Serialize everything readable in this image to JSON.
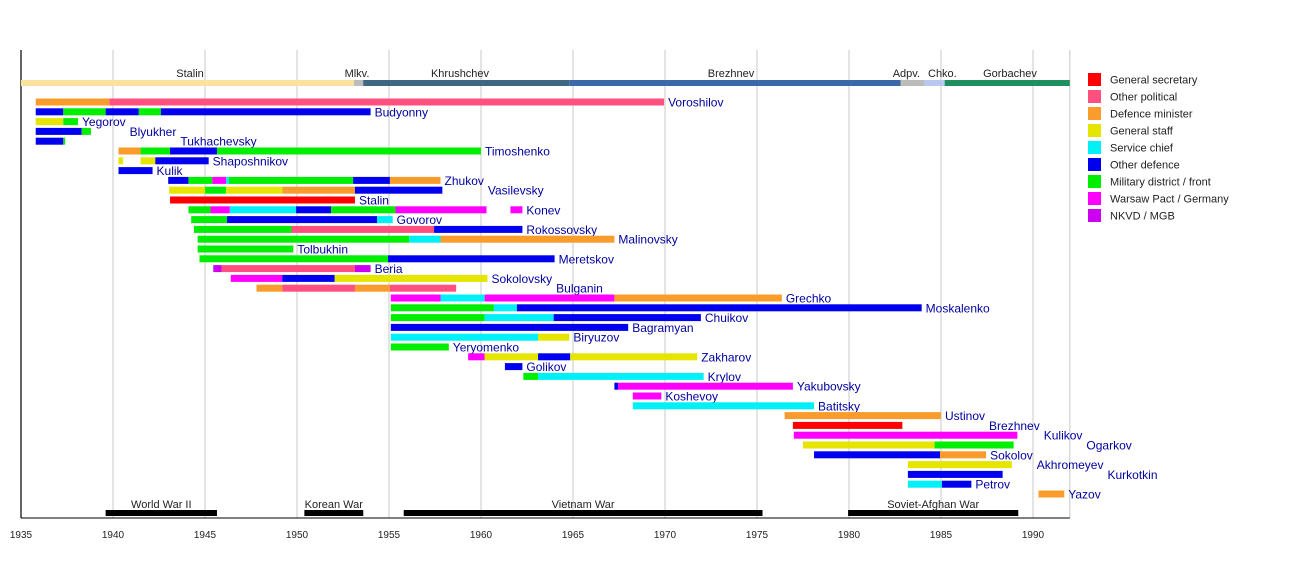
{
  "chart_data": {
    "type": "timeline",
    "xlim": [
      1935,
      1992
    ],
    "x_ticks": [
      "1935",
      "1940",
      "1945",
      "1950",
      "1955",
      "1960",
      "1965",
      "1970",
      "1975",
      "1980",
      "1985",
      "1990"
    ],
    "grid": true,
    "legend_placement": "right",
    "roles": {
      "GS": {
        "label": "General secretary",
        "color": "#ff0000"
      },
      "OP": {
        "label": "Other political",
        "color": "#ff5080"
      },
      "DM": {
        "label": "Defence minister",
        "color": "#f99c2c"
      },
      "ST": {
        "label": "General staff",
        "color": "#e5e500"
      },
      "SC": {
        "label": "Service chief",
        "color": "#00f0f8"
      },
      "OD": {
        "label": "Other defence",
        "color": "#0000ee"
      },
      "MD": {
        "label": "Military district / front",
        "color": "#00ee00"
      },
      "WP": {
        "label": "Warsaw Pact / Germany",
        "color": "#ff00ff"
      },
      "NK": {
        "label": "NKVD / MGB",
        "color": "#cc00f0"
      }
    },
    "legend_order": [
      "GS",
      "OP",
      "DM",
      "ST",
      "SC",
      "OD",
      "MD",
      "WP",
      "NK"
    ],
    "leaders": [
      {
        "label": "Stalin",
        "start": 1935.0,
        "end": 1953.1,
        "color": "#fbe29f"
      },
      {
        "label": "Mlkv.",
        "start": 1953.1,
        "end": 1953.6,
        "color": "#bbbbbb"
      },
      {
        "label": "Khrushchev",
        "start": 1953.6,
        "end": 1964.8,
        "color": "#3e6680"
      },
      {
        "label": "Brezhnev",
        "start": 1964.8,
        "end": 1982.8,
        "color": "#3b68a8"
      },
      {
        "label": "Adpv.",
        "start": 1982.8,
        "end": 1984.1,
        "color": "#bbbbbb"
      },
      {
        "label": "Chko.",
        "start": 1984.1,
        "end": 1985.2,
        "color": "#b8c8f0"
      },
      {
        "label": "Gorbachev",
        "start": 1985.2,
        "end": 1992.0,
        "color": "#1f8f60"
      }
    ],
    "wars": [
      {
        "label": "World War II",
        "start": 1939.6,
        "end": 1945.65
      },
      {
        "label": "Korean War",
        "start": 1950.4,
        "end": 1953.6
      },
      {
        "label": "Vietnam War",
        "start": 1955.8,
        "end": 1975.3
      },
      {
        "label": "Soviet-Afghan War",
        "start": 1979.95,
        "end": 1989.2
      }
    ],
    "people": [
      {
        "name": "Voroshilov",
        "segments": [
          [
            1935.8,
            1939.8,
            "DM"
          ],
          [
            1939.8,
            1969.95,
            "OP"
          ]
        ]
      },
      {
        "name": "Budyonny",
        "segments": [
          [
            1935.8,
            1937.3,
            "OD"
          ],
          [
            1937.3,
            1939.6,
            "MD"
          ],
          [
            1939.6,
            1941.4,
            "OD"
          ],
          [
            1941.4,
            1942.6,
            "MD"
          ],
          [
            1942.6,
            1954.0,
            "OD"
          ]
        ]
      },
      {
        "name": "Yegorov",
        "segments": [
          [
            1935.8,
            1937.3,
            "ST"
          ],
          [
            1937.3,
            1938.1,
            "MD"
          ]
        ]
      },
      {
        "name": "Blyukher",
        "segments": [
          [
            1935.8,
            1938.3,
            "OD"
          ],
          [
            1938.3,
            1938.8,
            "MD"
          ]
        ]
      },
      {
        "name": "Tukhachevsky",
        "segments": [
          [
            1935.8,
            1937.3,
            "OD"
          ],
          [
            1937.3,
            1937.4,
            "MD"
          ]
        ]
      },
      {
        "name": "Timoshenko",
        "segments": [
          [
            1940.3,
            1941.5,
            "DM"
          ],
          [
            1941.5,
            1943.1,
            "MD"
          ],
          [
            1943.1,
            1945.65,
            "OD"
          ],
          [
            1945.65,
            1960.0,
            "MD"
          ]
        ]
      },
      {
        "name": "Shaposhnikov",
        "segments": [
          [
            1940.3,
            1940.55,
            "ST"
          ],
          [
            1941.5,
            1942.3,
            "ST"
          ],
          [
            1942.3,
            1945.2,
            "OD"
          ]
        ]
      },
      {
        "name": "Kulik",
        "segments": [
          [
            1940.3,
            1942.15,
            "OD"
          ]
        ]
      },
      {
        "name": "Zhukov",
        "segments": [
          [
            1943.0,
            1944.1,
            "OD"
          ],
          [
            1944.1,
            1945.4,
            "MD"
          ],
          [
            1945.4,
            1946.15,
            "WP"
          ],
          [
            1946.15,
            1946.3,
            "SC"
          ],
          [
            1946.3,
            1953.05,
            "MD"
          ],
          [
            1953.05,
            1955.05,
            "OD"
          ],
          [
            1955.05,
            1957.8,
            "DM"
          ]
        ]
      },
      {
        "name": "Vasilevsky",
        "segments": [
          [
            1943.05,
            1945.0,
            "ST"
          ],
          [
            1945.0,
            1946.15,
            "MD"
          ],
          [
            1946.15,
            1949.2,
            "ST"
          ],
          [
            1949.2,
            1953.15,
            "DM"
          ],
          [
            1953.15,
            1957.9,
            "OD"
          ]
        ]
      },
      {
        "name": "Stalin",
        "segments": [
          [
            1943.1,
            1953.15,
            "GS"
          ]
        ]
      },
      {
        "name": "Konev",
        "segments": [
          [
            1944.1,
            1945.3,
            "MD"
          ],
          [
            1945.3,
            1946.35,
            "WP"
          ],
          [
            1946.35,
            1949.95,
            "SC"
          ],
          [
            1949.95,
            1951.85,
            "OD"
          ],
          [
            1951.85,
            1955.35,
            "MD"
          ],
          [
            1955.35,
            1960.3,
            "WP"
          ],
          [
            1961.6,
            1962.25,
            "WP"
          ]
        ]
      },
      {
        "name": "Govorov",
        "segments": [
          [
            1944.25,
            1946.2,
            "MD"
          ],
          [
            1946.2,
            1954.35,
            "OD"
          ],
          [
            1954.35,
            1955.2,
            "SC"
          ]
        ]
      },
      {
        "name": "Rokossovsky",
        "segments": [
          [
            1944.4,
            1949.7,
            "MD"
          ],
          [
            1949.7,
            1957.45,
            "OP"
          ],
          [
            1957.45,
            1962.25,
            "OD"
          ]
        ]
      },
      {
        "name": "Malinovsky",
        "segments": [
          [
            1944.6,
            1956.1,
            "MD"
          ],
          [
            1956.1,
            1957.8,
            "SC"
          ],
          [
            1957.8,
            1967.25,
            "DM"
          ]
        ]
      },
      {
        "name": "Tolbukhin",
        "segments": [
          [
            1944.6,
            1949.8,
            "MD"
          ]
        ]
      },
      {
        "name": "Meretskov",
        "segments": [
          [
            1944.7,
            1954.95,
            "MD"
          ],
          [
            1954.95,
            1964.0,
            "OD"
          ]
        ]
      },
      {
        "name": "Beria",
        "segments": [
          [
            1945.45,
            1945.9,
            "NK"
          ],
          [
            1945.9,
            1953.15,
            "OP"
          ],
          [
            1953.15,
            1954.0,
            "NK"
          ]
        ]
      },
      {
        "name": "Sokolovsky",
        "segments": [
          [
            1946.4,
            1949.2,
            "WP"
          ],
          [
            1949.2,
            1952.05,
            "OD"
          ],
          [
            1952.05,
            1960.35,
            "ST"
          ]
        ]
      },
      {
        "name": "Bulganin",
        "segments": [
          [
            1947.8,
            1949.2,
            "DM"
          ],
          [
            1949.2,
            1953.15,
            "OP"
          ],
          [
            1953.15,
            1955.05,
            "DM"
          ],
          [
            1955.05,
            1958.65,
            "OP"
          ]
        ]
      },
      {
        "name": "Grechko",
        "segments": [
          [
            1955.1,
            1957.8,
            "WP"
          ],
          [
            1957.8,
            1960.2,
            "SC"
          ],
          [
            1960.2,
            1967.25,
            "WP"
          ],
          [
            1967.25,
            1976.35,
            "DM"
          ]
        ]
      },
      {
        "name": "Moskalenko",
        "segments": [
          [
            1955.1,
            1960.7,
            "MD"
          ],
          [
            1960.7,
            1961.95,
            "SC"
          ],
          [
            1961.95,
            1983.95,
            "OD"
          ]
        ]
      },
      {
        "name": "Chuikov",
        "segments": [
          [
            1955.1,
            1960.2,
            "MD"
          ],
          [
            1960.2,
            1963.95,
            "SC"
          ],
          [
            1963.95,
            1971.95,
            "OD"
          ]
        ]
      },
      {
        "name": "Bagramyan",
        "segments": [
          [
            1955.1,
            1968.0,
            "OD"
          ]
        ]
      },
      {
        "name": "Biryuzov",
        "segments": [
          [
            1955.1,
            1963.1,
            "SC"
          ],
          [
            1963.1,
            1964.8,
            "ST"
          ]
        ]
      },
      {
        "name": "Yeryomenko",
        "segments": [
          [
            1955.1,
            1958.25,
            "MD"
          ]
        ]
      },
      {
        "name": "Zakharov",
        "segments": [
          [
            1959.3,
            1960.2,
            "WP"
          ],
          [
            1960.2,
            1963.1,
            "ST"
          ],
          [
            1963.1,
            1964.85,
            "OD"
          ],
          [
            1964.85,
            1971.75,
            "ST"
          ]
        ]
      },
      {
        "name": "Golikov",
        "segments": [
          [
            1961.3,
            1962.25,
            "OD"
          ]
        ]
      },
      {
        "name": "Krylov",
        "segments": [
          [
            1962.3,
            1963.1,
            "MD"
          ],
          [
            1963.1,
            1972.1,
            "SC"
          ]
        ]
      },
      {
        "name": "Yakubovsky",
        "segments": [
          [
            1967.25,
            1967.45,
            "OD"
          ],
          [
            1967.45,
            1976.95,
            "WP"
          ]
        ]
      },
      {
        "name": "Koshevoy",
        "segments": [
          [
            1968.25,
            1969.8,
            "WP"
          ]
        ]
      },
      {
        "name": "Batitsky",
        "segments": [
          [
            1968.25,
            1978.1,
            "SC"
          ]
        ]
      },
      {
        "name": "Ustinov",
        "segments": [
          [
            1976.5,
            1985.0,
            "DM"
          ]
        ]
      },
      {
        "name": "Brezhnev",
        "segments": [
          [
            1976.95,
            1982.9,
            "GS"
          ]
        ]
      },
      {
        "name": "Kulikov",
        "segments": [
          [
            1977.0,
            1989.15,
            "WP"
          ]
        ]
      },
      {
        "name": "Ogarkov",
        "segments": [
          [
            1977.5,
            1984.65,
            "ST"
          ],
          [
            1984.65,
            1988.95,
            "MD"
          ]
        ]
      },
      {
        "name": "Sokolov",
        "segments": [
          [
            1978.1,
            1984.95,
            "OD"
          ],
          [
            1984.95,
            1987.45,
            "DM"
          ]
        ]
      },
      {
        "name": "Akhromeyev",
        "segments": [
          [
            1983.2,
            1988.85,
            "ST"
          ]
        ]
      },
      {
        "name": "Kurkotkin",
        "segments": [
          [
            1983.2,
            1988.35,
            "OD"
          ]
        ]
      },
      {
        "name": "Petrov",
        "segments": [
          [
            1983.2,
            1985.05,
            "SC"
          ],
          [
            1985.05,
            1986.65,
            "OD"
          ]
        ]
      },
      {
        "name": "Yazov",
        "segments": [
          [
            1990.3,
            1991.7,
            "DM"
          ]
        ]
      }
    ]
  }
}
